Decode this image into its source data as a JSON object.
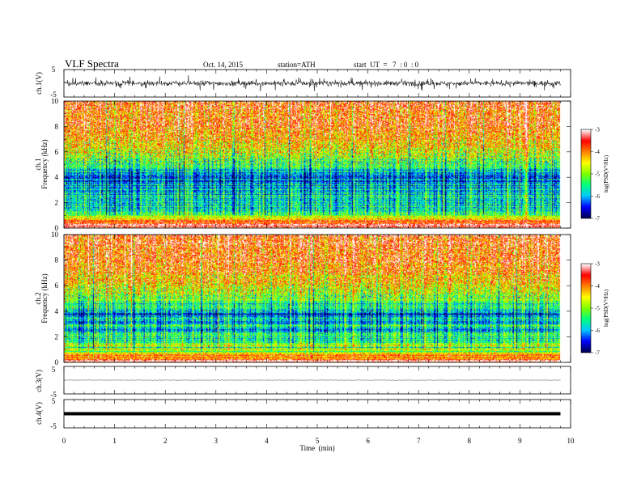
{
  "header": {
    "title": "VLF  Spectra",
    "date": "Oct. 14, 2015",
    "station": "station=ATH",
    "start_time": "start  UT  =   7  : 0  : 0"
  },
  "chart_data": [
    {
      "type": "line",
      "panel": "ch1-waveform",
      "ylabel": "ch.1(V)",
      "ylim": [
        -5,
        5
      ],
      "yticks": [
        "5",
        "-5"
      ],
      "xlim": [
        0,
        10
      ],
      "data_end_min": 9.8,
      "baseline": 0,
      "amplitude": "approx ±1 V noise with spikes to ±2 V",
      "series_color": "#000000"
    },
    {
      "type": "heatmap",
      "panel": "ch1-spectrogram",
      "ylabel": "ch.1\nFrequency  (kHz)",
      "ylabel_lines": [
        "ch.1",
        "Frequency  (kHz)"
      ],
      "ylim": [
        0,
        10
      ],
      "yticks": [
        "0",
        "2",
        "4",
        "6",
        "8",
        "10"
      ],
      "xlim": [
        0,
        10
      ],
      "data_end_min": 9.8,
      "colorbar": {
        "label": "log(PSD(V²/Hz)",
        "range": [
          -7,
          -3
        ],
        "ticks": [
          "-3",
          "-4",
          "-5",
          "-6",
          "-7"
        ],
        "colormap": [
          "#000050",
          "#0000ff",
          "#00c8ff",
          "#00ff80",
          "#80ff00",
          "#ffff00",
          "#ff8000",
          "#ff0000",
          "#ffffff"
        ]
      },
      "profile_log_psd": [
        {
          "f_khz": 0.0,
          "psd": -3.2
        },
        {
          "f_khz": 0.5,
          "psd": -3.8
        },
        {
          "f_khz": 1.0,
          "psd": -5.2
        },
        {
          "f_khz": 2.0,
          "psd": -5.6
        },
        {
          "f_khz": 3.0,
          "psd": -6.0
        },
        {
          "f_khz": 4.0,
          "psd": -6.2
        },
        {
          "f_khz": 5.0,
          "psd": -5.3
        },
        {
          "f_khz": 6.0,
          "psd": -4.6
        },
        {
          "f_khz": 7.0,
          "psd": -4.1
        },
        {
          "f_khz": 8.0,
          "psd": -3.8
        },
        {
          "f_khz": 10.0,
          "psd": -3.6
        }
      ]
    },
    {
      "type": "heatmap",
      "panel": "ch2-spectrogram",
      "ylabel": "ch.2\nFrequency  (kHz)",
      "ylabel_lines": [
        "ch.2",
        "Frequency  (kHz)"
      ],
      "ylim": [
        0,
        10
      ],
      "yticks": [
        "0",
        "2",
        "4",
        "6",
        "8",
        "10"
      ],
      "xlim": [
        0,
        10
      ],
      "data_end_min": 9.8,
      "colorbar": {
        "label": "log(PSD(V²/Hz)",
        "range": [
          -7,
          -3
        ],
        "ticks": [
          "-3",
          "-4",
          "-5",
          "-6",
          "-7"
        ],
        "colormap": [
          "#000050",
          "#0000ff",
          "#00c8ff",
          "#00ff80",
          "#80ff00",
          "#ffff00",
          "#ff8000",
          "#ff0000",
          "#ffffff"
        ]
      },
      "profile_log_psd": [
        {
          "f_khz": 0.0,
          "psd": -3.3
        },
        {
          "f_khz": 0.5,
          "psd": -4.2
        },
        {
          "f_khz": 1.0,
          "psd": -4.6
        },
        {
          "f_khz": 2.0,
          "psd": -5.5
        },
        {
          "f_khz": 3.0,
          "psd": -5.8
        },
        {
          "f_khz": 4.0,
          "psd": -5.9
        },
        {
          "f_khz": 5.0,
          "psd": -5.0
        },
        {
          "f_khz": 6.0,
          "psd": -4.4
        },
        {
          "f_khz": 7.0,
          "psd": -4.0
        },
        {
          "f_khz": 8.0,
          "psd": -3.8
        },
        {
          "f_khz": 10.0,
          "psd": -3.6
        }
      ]
    },
    {
      "type": "line",
      "panel": "ch3-waveform",
      "ylabel": "ch.3(V)",
      "ylim": [
        -5,
        5
      ],
      "yticks": [
        "5",
        "-5"
      ],
      "xlim": [
        0,
        10
      ],
      "data_end_min": 9.8,
      "baseline": 0,
      "amplitude": "near-flat, approx ±0.1 V",
      "series_color": "#000000"
    },
    {
      "type": "line",
      "panel": "ch4-waveform",
      "ylabel": "ch.4(V)",
      "ylim": [
        -5,
        5
      ],
      "yticks": [
        "5",
        "-5"
      ],
      "xlim": [
        0,
        10
      ],
      "data_end_min": 9.8,
      "baseline": 0,
      "amplitude": "thick constant band near 0 V",
      "series_color": "#000000"
    }
  ],
  "x_axis": {
    "label": "Time  (min)",
    "ticks": [
      "0",
      "1",
      "2",
      "3",
      "4",
      "5",
      "6",
      "7",
      "8",
      "9",
      "10"
    ],
    "range": [
      0,
      10
    ]
  }
}
